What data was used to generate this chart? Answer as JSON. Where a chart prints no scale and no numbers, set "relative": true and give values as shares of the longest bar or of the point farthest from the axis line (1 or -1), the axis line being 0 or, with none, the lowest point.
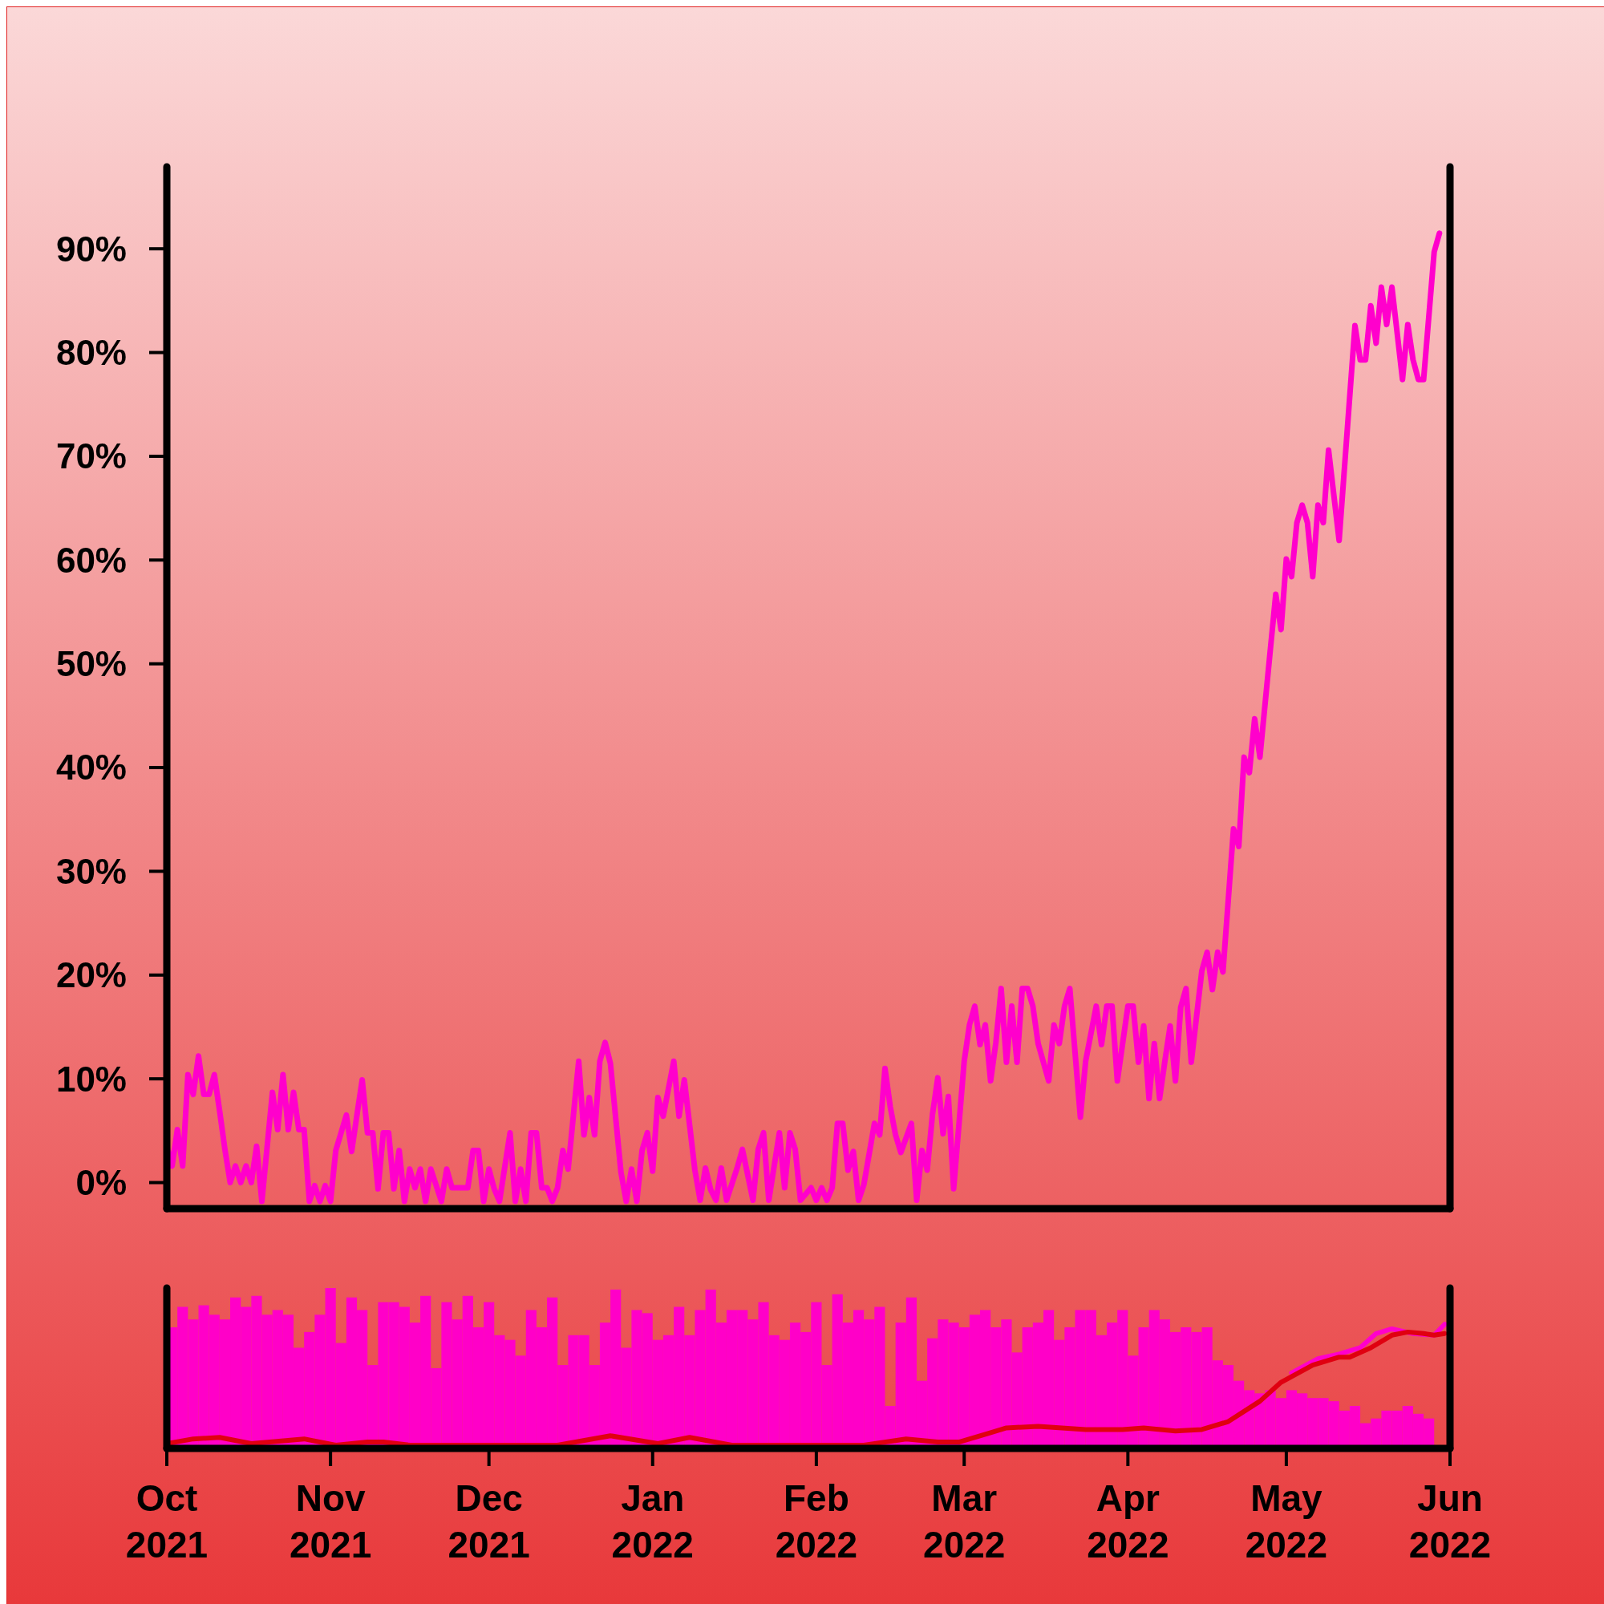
{
  "chart_data": [
    {
      "type": "line",
      "xlim": [
        "2021-10-01",
        "2022-06-01"
      ],
      "ylim": [
        -2.2,
        97.9
      ],
      "tick_labels": "y",
      "yticks": [
        {
          "value": 0,
          "label": "0%"
        },
        {
          "value": 10,
          "label": "10%"
        },
        {
          "value": 20,
          "label": "20%"
        },
        {
          "value": 30,
          "label": "30%"
        },
        {
          "value": 40,
          "label": "40%"
        },
        {
          "value": 50,
          "label": "50%"
        },
        {
          "value": 60,
          "label": "60%"
        },
        {
          "value": 70,
          "label": "70%"
        },
        {
          "value": 80,
          "label": "80%"
        },
        {
          "value": 90,
          "label": "90%"
        }
      ],
      "x": [
        "2021-10-01",
        "2021-10-02",
        "2021-10-03",
        "2021-10-04",
        "2021-10-05",
        "2021-10-06",
        "2021-10-07",
        "2021-10-08",
        "2021-10-09",
        "2021-10-10",
        "2021-10-11",
        "2021-10-12",
        "2021-10-13",
        "2021-10-14",
        "2021-10-15",
        "2021-10-16",
        "2021-10-17",
        "2021-10-18",
        "2021-10-19",
        "2021-10-21",
        "2021-10-22",
        "2021-10-23",
        "2021-10-24",
        "2021-10-25",
        "2021-10-26",
        "2021-10-27",
        "2021-10-28",
        "2021-10-29",
        "2021-10-30",
        "2021-10-31",
        "2021-11-01",
        "2021-11-02",
        "2021-11-03",
        "2021-11-04",
        "2021-11-05",
        "2021-11-06",
        "2021-11-07",
        "2021-11-08",
        "2021-11-09",
        "2021-11-10",
        "2021-11-11",
        "2021-11-12",
        "2021-11-13",
        "2021-11-14",
        "2021-11-15",
        "2021-11-16",
        "2021-11-17",
        "2021-11-18",
        "2021-11-19",
        "2021-11-20",
        "2021-11-22",
        "2021-11-23",
        "2021-11-24",
        "2021-11-25",
        "2021-11-27",
        "2021-11-28",
        "2021-11-29",
        "2021-11-30",
        "2021-12-01",
        "2021-12-02",
        "2021-12-03",
        "2021-12-05",
        "2021-12-06",
        "2021-12-07",
        "2021-12-08",
        "2021-12-09",
        "2021-12-10",
        "2021-12-11",
        "2021-12-12",
        "2021-12-13",
        "2021-12-14",
        "2021-12-15",
        "2021-12-16",
        "2021-12-18",
        "2021-12-19",
        "2021-12-20",
        "2021-12-21",
        "2021-12-22",
        "2021-12-23",
        "2021-12-24",
        "2021-12-26",
        "2021-12-27",
        "2021-12-28",
        "2021-12-29",
        "2021-12-30",
        "2021-12-31",
        "2022-01-01",
        "2022-01-02",
        "2022-01-03",
        "2022-01-05",
        "2022-01-06",
        "2022-01-07",
        "2022-01-09",
        "2022-01-10",
        "2022-01-11",
        "2022-01-12",
        "2022-01-13",
        "2022-01-14",
        "2022-01-15",
        "2022-01-17",
        "2022-01-18",
        "2022-01-20",
        "2022-01-21",
        "2022-01-22",
        "2022-01-23",
        "2022-01-25",
        "2022-01-26",
        "2022-01-27",
        "2022-01-28",
        "2022-01-29",
        "2022-01-31",
        "2022-02-01",
        "2022-02-02",
        "2022-02-03",
        "2022-02-04",
        "2022-02-05",
        "2022-02-06",
        "2022-02-07",
        "2022-02-08",
        "2022-02-09",
        "2022-02-10",
        "2022-02-12",
        "2022-02-13",
        "2022-02-14",
        "2022-02-15",
        "2022-02-16",
        "2022-02-17",
        "2022-02-19",
        "2022-02-20",
        "2022-02-21",
        "2022-02-22",
        "2022-02-23",
        "2022-02-24",
        "2022-02-25",
        "2022-02-26",
        "2022-02-27",
        "2022-03-01",
        "2022-03-02",
        "2022-03-03",
        "2022-03-04",
        "2022-03-05",
        "2022-03-06",
        "2022-03-07",
        "2022-03-08",
        "2022-03-09",
        "2022-03-10",
        "2022-03-11",
        "2022-03-12",
        "2022-03-13",
        "2022-03-14",
        "2022-03-15",
        "2022-03-16",
        "2022-03-17",
        "2022-03-18",
        "2022-03-19",
        "2022-03-20",
        "2022-03-21",
        "2022-03-23",
        "2022-03-24",
        "2022-03-26",
        "2022-03-27",
        "2022-03-28",
        "2022-03-29",
        "2022-03-30",
        "2022-03-31",
        "2022-04-01",
        "2022-04-02",
        "2022-04-03",
        "2022-04-04",
        "2022-04-05",
        "2022-04-06",
        "2022-04-07",
        "2022-04-08",
        "2022-04-09",
        "2022-04-10",
        "2022-04-11",
        "2022-04-12",
        "2022-04-13",
        "2022-04-15",
        "2022-04-16",
        "2022-04-17",
        "2022-04-18",
        "2022-04-19",
        "2022-04-21",
        "2022-04-22",
        "2022-04-23",
        "2022-04-24",
        "2022-04-25",
        "2022-04-26",
        "2022-04-28",
        "2022-04-29",
        "2022-04-30",
        "2022-05-01",
        "2022-05-02",
        "2022-05-03",
        "2022-05-04",
        "2022-05-05",
        "2022-05-06",
        "2022-05-07",
        "2022-05-08",
        "2022-05-09",
        "2022-05-11",
        "2022-05-14",
        "2022-05-15",
        "2022-05-16",
        "2022-05-17",
        "2022-05-18",
        "2022-05-19",
        "2022-05-20",
        "2022-05-21",
        "2022-05-23",
        "2022-05-24",
        "2022-05-25",
        "2022-05-26",
        "2022-05-27",
        "2022-05-29",
        "2022-05-30"
      ],
      "series": [
        {
          "color": "#ff00cc",
          "values": [
            3.5,
            1.6,
            5.1,
            1.6,
            10.4,
            8.5,
            12.2,
            8.5,
            8.5,
            10.4,
            6.9,
            3.2,
            0,
            1.6,
            0,
            1.6,
            0,
            3.5,
            -1.8,
            8.7,
            5.1,
            10.4,
            5.1,
            8.7,
            5.1,
            5.1,
            -1.8,
            -0.3,
            -1.8,
            -0.3,
            -1.8,
            3.1,
            4.8,
            6.5,
            3.0,
            6.5,
            9.9,
            4.8,
            4.8,
            -0.6,
            4.8,
            4.8,
            -0.6,
            3.1,
            -1.8,
            1.3,
            -0.5,
            1.3,
            -1.8,
            1.3,
            -1.8,
            1.3,
            -0.5,
            -0.5,
            -0.5,
            3.1,
            3.1,
            -1.8,
            1.3,
            -0.6,
            -1.8,
            4.8,
            -1.8,
            1.3,
            -1.8,
            4.8,
            4.8,
            -0.5,
            -0.5,
            -1.8,
            -0.5,
            3.1,
            1.3,
            11.7,
            4.6,
            8.2,
            4.6,
            11.7,
            13.5,
            11.5,
            1.0,
            -1.8,
            1.3,
            -1.8,
            3.1,
            4.8,
            1.1,
            8.2,
            6.4,
            11.7,
            6.4,
            9.9,
            1.2,
            -1.7,
            1.4,
            -0.7,
            -1.7,
            1.4,
            -1.7,
            1.4,
            3.2,
            -1.7,
            3.2,
            4.8,
            -1.7,
            4.8,
            -0.5,
            4.8,
            3.2,
            -1.7,
            -0.5,
            -1.7,
            -0.5,
            -1.7,
            -0.5,
            5.7,
            5.7,
            1.2,
            3.0,
            -1.7,
            -0.2,
            5.7,
            4.6,
            11,
            7.3,
            4.6,
            2.9,
            5.7,
            -1.7,
            3.1,
            1.2,
            6.6,
            10.1,
            4.7,
            8.3,
            -0.6,
            11.7,
            15.2,
            17,
            13.3,
            15.2,
            9.8,
            13.5,
            18.7,
            11.6,
            17,
            11.6,
            18.7,
            18.7,
            17,
            13.4,
            11.6,
            9.8,
            15.2,
            13.4,
            17,
            18.7,
            6.3,
            11.7,
            17,
            13.3,
            17,
            17,
            9.8,
            13.4,
            17,
            17,
            11.6,
            15.1,
            8.1,
            13.4,
            8.1,
            11.7,
            15.1,
            9.8,
            16.9,
            18.7,
            11.6,
            20.4,
            22.2,
            18.6,
            22.2,
            20.3,
            34.1,
            32.4,
            41,
            39.5,
            44.7,
            41,
            51.5,
            56.7,
            53.3,
            60.1,
            58.4,
            63.6,
            65.3,
            63.6,
            58.4,
            65.3,
            63.6,
            70.6,
            61.9,
            82.6,
            79.3,
            79.3,
            84.5,
            80.9,
            86.3,
            82.7,
            86.3,
            77.4,
            82.7,
            79.3,
            77.4,
            77.4,
            89.7,
            91.5
          ]
        }
      ]
    },
    {
      "type": "bar",
      "relative": true,
      "xlim": [
        "2021-10-01",
        "2022-06-01"
      ],
      "tick_labels": "x",
      "xticks": [
        {
          "value": "2021-10-01",
          "label": "Oct\n2021"
        },
        {
          "value": "2021-11-01",
          "label": "Nov\n2021"
        },
        {
          "value": "2021-12-01",
          "label": "Dec\n2021"
        },
        {
          "value": "2022-01-01",
          "label": "Jan\n2022"
        },
        {
          "value": "2022-02-01",
          "label": "Feb\n2022"
        },
        {
          "value": "2022-03-01",
          "label": "Mar\n2022"
        },
        {
          "value": "2022-04-01",
          "label": "Apr\n2022"
        },
        {
          "value": "2022-05-01",
          "label": "May\n2022"
        },
        {
          "value": "2022-06-01",
          "label": "Jun\n2022"
        }
      ],
      "x": [
        "2021-10-01",
        "2021-10-03",
        "2021-10-05",
        "2021-10-07",
        "2021-10-09",
        "2021-10-11",
        "2021-10-13",
        "2021-10-15",
        "2021-10-17",
        "2021-10-19",
        "2021-10-21",
        "2021-10-23",
        "2021-10-25",
        "2021-10-27",
        "2021-10-29",
        "2021-10-31",
        "2021-11-02",
        "2021-11-04",
        "2021-11-06",
        "2021-11-08",
        "2021-11-10",
        "2021-11-12",
        "2021-11-14",
        "2021-11-16",
        "2021-11-18",
        "2021-11-20",
        "2021-11-22",
        "2021-11-24",
        "2021-11-26",
        "2021-11-28",
        "2021-11-30",
        "2021-12-02",
        "2021-12-04",
        "2021-12-06",
        "2021-12-08",
        "2021-12-10",
        "2021-12-12",
        "2021-12-14",
        "2021-12-16",
        "2021-12-18",
        "2021-12-20",
        "2021-12-22",
        "2021-12-24",
        "2021-12-26",
        "2021-12-28",
        "2021-12-30",
        "2022-01-01",
        "2022-01-03",
        "2022-01-05",
        "2022-01-07",
        "2022-01-09",
        "2022-01-11",
        "2022-01-13",
        "2022-01-15",
        "2022-01-17",
        "2022-01-19",
        "2022-01-21",
        "2022-01-23",
        "2022-01-25",
        "2022-01-27",
        "2022-01-29",
        "2022-01-31",
        "2022-02-02",
        "2022-02-04",
        "2022-02-06",
        "2022-02-08",
        "2022-02-10",
        "2022-02-12",
        "2022-02-14",
        "2022-02-16",
        "2022-02-18",
        "2022-02-20",
        "2022-02-22",
        "2022-02-24",
        "2022-02-26",
        "2022-02-28",
        "2022-03-02",
        "2022-03-04",
        "2022-03-06",
        "2022-03-08",
        "2022-03-10",
        "2022-03-12",
        "2022-03-14",
        "2022-03-16",
        "2022-03-18",
        "2022-03-20",
        "2022-03-22",
        "2022-03-24",
        "2022-03-26",
        "2022-03-28",
        "2022-03-30",
        "2022-04-01",
        "2022-04-03",
        "2022-04-05",
        "2022-04-07",
        "2022-04-09",
        "2022-04-11",
        "2022-04-13",
        "2022-04-15",
        "2022-04-17",
        "2022-04-19",
        "2022-04-21",
        "2022-04-23",
        "2022-04-25",
        "2022-04-27",
        "2022-04-29",
        "2022-05-01",
        "2022-05-03",
        "2022-05-05",
        "2022-05-07",
        "2022-05-09",
        "2022-05-11",
        "2022-05-13",
        "2022-05-15",
        "2022-05-17",
        "2022-05-19",
        "2022-05-21",
        "2022-05-23",
        "2022-05-25",
        "2022-05-27"
      ],
      "series": [
        {
          "color": "#ff00c8",
          "values": [
            0.75,
            0.88,
            0.8,
            0.89,
            0.83,
            0.8,
            0.94,
            0.88,
            0.95,
            0.83,
            0.86,
            0.83,
            0.62,
            0.72,
            0.83,
            1,
            0.65,
            0.94,
            0.86,
            0.51,
            0.91,
            0.91,
            0.88,
            0.78,
            0.95,
            0.49,
            0.91,
            0.8,
            0.95,
            0.75,
            0.91,
            0.7,
            0.67,
            0.57,
            0.86,
            0.75,
            0.94,
            0.51,
            0.7,
            0.7,
            0.51,
            0.78,
            0.99,
            0.62,
            0.86,
            0.84,
            0.67,
            0.7,
            0.88,
            0.7,
            0.86,
            0.99,
            0.78,
            0.86,
            0.86,
            0.8,
            0.91,
            0.7,
            0.67,
            0.78,
            0.72,
            0.91,
            0.51,
            0.96,
            0.78,
            0.86,
            0.8,
            0.88,
            0.25,
            0.78,
            0.94,
            0.41,
            0.68,
            0.8,
            0.78,
            0.75,
            0.83,
            0.86,
            0.75,
            0.8,
            0.59,
            0.75,
            0.78,
            0.86,
            0.67,
            0.75,
            0.86,
            0.86,
            0.7,
            0.78,
            0.86,
            0.57,
            0.75,
            0.86,
            0.8,
            0.72,
            0.75,
            0.72,
            0.75,
            0.54,
            0.51,
            0.41,
            0.35,
            0.33,
            0.35,
            0.3,
            0.35,
            0.33,
            0.3,
            0.3,
            0.28,
            0.22,
            0.25,
            0.14,
            0.17,
            0.22,
            0.22,
            0.25,
            0.2,
            0.17
          ]
        },
        {
          "type": "line",
          "color": "#ff00cc",
          "x": [
            "2022-05-02",
            "2022-05-07",
            "2022-05-11",
            "2022-05-15",
            "2022-05-18",
            "2022-05-21",
            "2022-05-25",
            "2022-05-29",
            "2022-05-31"
          ],
          "values": [
            0.46,
            0.55,
            0.58,
            0.62,
            0.71,
            0.74,
            0.71,
            0.7,
            0.77
          ]
        },
        {
          "type": "line",
          "color": "#e00010",
          "x": [
            "2021-10-01",
            "2021-10-06",
            "2021-10-11",
            "2021-10-17",
            "2021-10-27",
            "2021-11-02",
            "2021-11-08",
            "2021-11-11",
            "2021-11-16",
            "2021-12-14",
            "2021-12-24",
            "2022-01-02",
            "2022-01-08",
            "2022-01-16",
            "2022-01-28",
            "2022-02-10",
            "2022-02-18",
            "2022-02-24",
            "2022-02-28",
            "2022-03-05",
            "2022-03-09",
            "2022-03-15",
            "2022-03-24",
            "2022-03-31",
            "2022-04-04",
            "2022-04-10",
            "2022-04-15",
            "2022-04-20",
            "2022-04-26",
            "2022-04-30",
            "2022-05-06",
            "2022-05-11",
            "2022-05-13",
            "2022-05-17",
            "2022-05-21",
            "2022-05-24",
            "2022-05-27",
            "2022-05-29",
            "2022-05-31"
          ],
          "values": [
            0.01,
            0.04,
            0.05,
            0.01,
            0.04,
            0,
            0.02,
            0.02,
            0,
            0,
            0.06,
            0.01,
            0.05,
            0,
            0,
            0,
            0.04,
            0.02,
            0.02,
            0.07,
            0.11,
            0.12,
            0.1,
            0.1,
            0.11,
            0.09,
            0.1,
            0.15,
            0.28,
            0.4,
            0.51,
            0.56,
            0.56,
            0.62,
            0.7,
            0.72,
            0.71,
            0.7,
            0.71
          ]
        }
      ]
    }
  ]
}
